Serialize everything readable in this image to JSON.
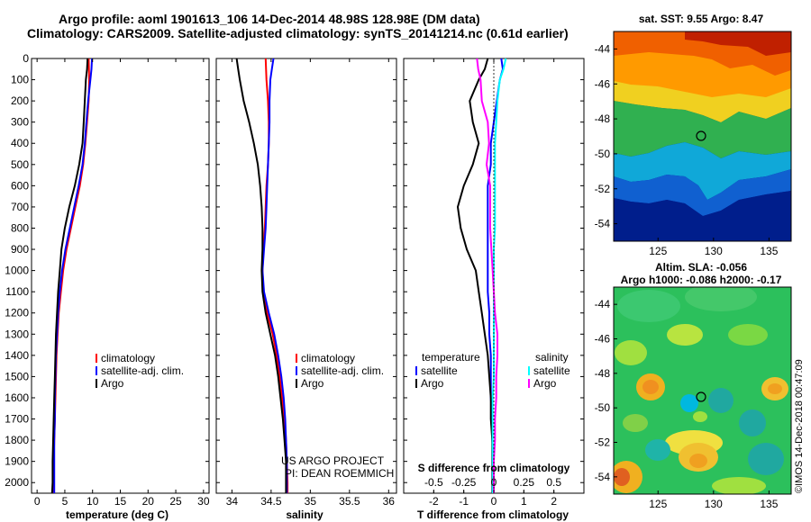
{
  "header": {
    "line1": "Argo profile: aoml 1901613_106 14-Dec-2014 48.98S 128.98E (DM data)",
    "line2": "Climatology: CARS2009. Satellite-adjusted climatology: synTS_20141214.nc (0.61d earlier)"
  },
  "credit": {
    "line1": "US ARGO PROJECT",
    "line2": "PI: DEAN ROEMMICH"
  },
  "side_stamp": "©IMOS 14-Dec-2018 00:47:09",
  "colors": {
    "red": "#ff0000",
    "blue": "#0000ff",
    "black": "#000000",
    "cyan": "#00ffff",
    "magenta": "#ff00ff"
  },
  "chart_data": [
    {
      "type": "line",
      "xlabel": "temperature (deg C)",
      "ylim": [
        2050,
        0
      ],
      "xlim": [
        -1,
        31
      ],
      "y_ticks": [
        0,
        100,
        200,
        300,
        400,
        500,
        600,
        700,
        800,
        900,
        1000,
        1100,
        1200,
        1300,
        1400,
        1500,
        1600,
        1700,
        1800,
        1900,
        2000
      ],
      "x_ticks": [
        0,
        5,
        10,
        15,
        20,
        25,
        30
      ],
      "legend": [
        "climatology",
        "satellite-adj. clim.",
        "Argo"
      ],
      "series": [
        {
          "name": "climatology",
          "color": "#ff0000",
          "points": [
            [
              9.3,
              0
            ],
            [
              9.4,
              100
            ],
            [
              9.3,
              200
            ],
            [
              9.0,
              300
            ],
            [
              8.7,
              400
            ],
            [
              8.3,
              500
            ],
            [
              7.7,
              600
            ],
            [
              6.9,
              700
            ],
            [
              6.1,
              800
            ],
            [
              5.3,
              900
            ],
            [
              4.7,
              1000
            ],
            [
              4.3,
              1100
            ],
            [
              3.9,
              1200
            ],
            [
              3.7,
              1300
            ],
            [
              3.5,
              1400
            ],
            [
              3.4,
              1500
            ],
            [
              3.3,
              1600
            ],
            [
              3.2,
              1700
            ],
            [
              3.1,
              1800
            ],
            [
              3.0,
              1900
            ],
            [
              2.9,
              2000
            ],
            [
              2.8,
              2050
            ]
          ]
        },
        {
          "name": "satellite-adj. clim.",
          "color": "#0000ff",
          "points": [
            [
              9.9,
              0
            ],
            [
              9.8,
              50
            ],
            [
              9.6,
              100
            ],
            [
              9.2,
              200
            ],
            [
              8.9,
              300
            ],
            [
              8.6,
              400
            ],
            [
              8.2,
              500
            ],
            [
              7.5,
              600
            ],
            [
              6.7,
              700
            ],
            [
              5.9,
              800
            ],
            [
              5.1,
              900
            ],
            [
              4.5,
              1000
            ],
            [
              4.1,
              1100
            ],
            [
              3.8,
              1200
            ],
            [
              3.6,
              1300
            ],
            [
              3.4,
              1400
            ],
            [
              3.3,
              1500
            ],
            [
              3.2,
              1600
            ],
            [
              3.2,
              1700
            ],
            [
              3.1,
              1800
            ],
            [
              3.1,
              1900
            ],
            [
              3.1,
              2000
            ],
            [
              3.1,
              2050
            ]
          ]
        },
        {
          "name": "Argo",
          "color": "#000000",
          "points": [
            [
              9.1,
              0
            ],
            [
              9.0,
              50
            ],
            [
              8.8,
              100
            ],
            [
              8.6,
              200
            ],
            [
              8.4,
              300
            ],
            [
              8.2,
              400
            ],
            [
              7.6,
              500
            ],
            [
              6.8,
              600
            ],
            [
              5.8,
              700
            ],
            [
              5.0,
              800
            ],
            [
              4.4,
              900
            ],
            [
              4.1,
              1000
            ],
            [
              3.8,
              1100
            ],
            [
              3.6,
              1200
            ],
            [
              3.4,
              1300
            ],
            [
              3.3,
              1400
            ],
            [
              3.2,
              1500
            ],
            [
              3.1,
              1600
            ],
            [
              3.0,
              1700
            ],
            [
              2.9,
              1800
            ],
            [
              2.8,
              1900
            ],
            [
              2.8,
              2000
            ],
            [
              2.7,
              2050
            ]
          ]
        }
      ]
    },
    {
      "type": "line",
      "xlabel": "salinity",
      "ylim": [
        2050,
        0
      ],
      "xlim": [
        33.8,
        36.1
      ],
      "x_ticks": [
        34,
        34.5,
        35,
        35.5,
        36
      ],
      "legend": [
        "climatology",
        "satellite-adj. clim.",
        "Argo"
      ],
      "series": [
        {
          "name": "climatology",
          "color": "#ff0000",
          "points": [
            [
              34.43,
              0
            ],
            [
              34.44,
              100
            ],
            [
              34.46,
              200
            ],
            [
              34.47,
              300
            ],
            [
              34.47,
              400
            ],
            [
              34.46,
              500
            ],
            [
              34.44,
              600
            ],
            [
              34.43,
              700
            ],
            [
              34.42,
              800
            ],
            [
              34.4,
              900
            ],
            [
              34.39,
              1000
            ],
            [
              34.4,
              1100
            ],
            [
              34.45,
              1200
            ],
            [
              34.52,
              1300
            ],
            [
              34.57,
              1400
            ],
            [
              34.61,
              1500
            ],
            [
              34.64,
              1600
            ],
            [
              34.67,
              1700
            ],
            [
              34.69,
              1800
            ],
            [
              34.7,
              1900
            ],
            [
              34.71,
              2000
            ],
            [
              34.71,
              2050
            ]
          ]
        },
        {
          "name": "satellite-adj. clim.",
          "color": "#0000ff",
          "points": [
            [
              34.53,
              0
            ],
            [
              34.51,
              50
            ],
            [
              34.49,
              100
            ],
            [
              34.48,
              200
            ],
            [
              34.48,
              300
            ],
            [
              34.47,
              400
            ],
            [
              34.46,
              500
            ],
            [
              34.45,
              600
            ],
            [
              34.44,
              700
            ],
            [
              34.43,
              800
            ],
            [
              34.41,
              900
            ],
            [
              34.39,
              1000
            ],
            [
              34.41,
              1100
            ],
            [
              34.47,
              1200
            ],
            [
              34.54,
              1300
            ],
            [
              34.59,
              1400
            ],
            [
              34.63,
              1500
            ],
            [
              34.66,
              1600
            ],
            [
              34.68,
              1700
            ],
            [
              34.69,
              1800
            ],
            [
              34.7,
              1900
            ],
            [
              34.7,
              2000
            ],
            [
              34.7,
              2050
            ]
          ]
        },
        {
          "name": "Argo",
          "color": "#000000",
          "points": [
            [
              34.06,
              0
            ],
            [
              34.08,
              50
            ],
            [
              34.1,
              100
            ],
            [
              34.15,
              200
            ],
            [
              34.22,
              300
            ],
            [
              34.28,
              400
            ],
            [
              34.33,
              500
            ],
            [
              34.36,
              600
            ],
            [
              34.38,
              700
            ],
            [
              34.39,
              800
            ],
            [
              34.39,
              900
            ],
            [
              34.38,
              1000
            ],
            [
              34.39,
              1100
            ],
            [
              34.43,
              1200
            ],
            [
              34.49,
              1300
            ],
            [
              34.55,
              1400
            ],
            [
              34.59,
              1500
            ],
            [
              34.62,
              1600
            ],
            [
              34.65,
              1700
            ],
            [
              34.67,
              1800
            ],
            [
              34.69,
              1900
            ],
            [
              34.69,
              2000
            ],
            [
              34.69,
              2050
            ]
          ]
        }
      ]
    },
    {
      "type": "line",
      "xlabel": "T difference from climatology",
      "x2label": "S difference from climatology",
      "ylim": [
        2050,
        0
      ],
      "xlim": [
        -3,
        3
      ],
      "x_ticks": [
        -2,
        -1,
        0,
        1,
        2
      ],
      "x2lim": [
        -0.75,
        0.75
      ],
      "x2_ticks": [
        -0.5,
        -0.25,
        0,
        0.25,
        0.5
      ],
      "x2_tick_labels": [
        "-0.5",
        "-0.25",
        "0",
        "0.25",
        "0.5"
      ],
      "legend_left_title": "temperature",
      "legend_right_title": "salinity",
      "legend": [
        "satellite",
        "Argo",
        "satellite",
        "Argo"
      ],
      "series": [
        {
          "name": "satellite",
          "quantity": "temperature",
          "color": "#0000ff",
          "points": [
            [
              0.25,
              0
            ],
            [
              0.3,
              50
            ],
            [
              0.2,
              100
            ],
            [
              0.1,
              200
            ],
            [
              0.0,
              300
            ],
            [
              -0.1,
              400
            ],
            [
              -0.1,
              500
            ],
            [
              -0.2,
              600
            ],
            [
              -0.2,
              700
            ],
            [
              -0.2,
              800
            ],
            [
              -0.2,
              900
            ],
            [
              -0.2,
              1000
            ],
            [
              -0.2,
              1100
            ],
            [
              -0.15,
              1200
            ],
            [
              -0.15,
              1300
            ],
            [
              -0.1,
              1400
            ],
            [
              -0.1,
              1500
            ],
            [
              -0.1,
              1600
            ],
            [
              -0.05,
              1700
            ],
            [
              -0.05,
              1800
            ],
            [
              0.0,
              1900
            ],
            [
              0.0,
              2000
            ],
            [
              0.0,
              2050
            ]
          ]
        },
        {
          "name": "Argo",
          "quantity": "temperature",
          "color": "#000000",
          "points": [
            [
              -0.2,
              0
            ],
            [
              -0.3,
              50
            ],
            [
              -0.5,
              100
            ],
            [
              -0.8,
              200
            ],
            [
              -0.7,
              300
            ],
            [
              -0.5,
              400
            ],
            [
              -0.7,
              500
            ],
            [
              -1.0,
              600
            ],
            [
              -1.2,
              700
            ],
            [
              -1.1,
              800
            ],
            [
              -0.9,
              900
            ],
            [
              -0.6,
              1000
            ],
            [
              -0.5,
              1100
            ],
            [
              -0.4,
              1200
            ],
            [
              -0.3,
              1300
            ],
            [
              -0.2,
              1400
            ],
            [
              -0.15,
              1500
            ],
            [
              -0.1,
              1600
            ],
            [
              -0.1,
              1700
            ],
            [
              -0.05,
              1800
            ],
            [
              -0.05,
              1900
            ],
            [
              -0.05,
              2000
            ],
            [
              -0.05,
              2050
            ]
          ]
        },
        {
          "name": "satellite",
          "quantity": "salinity",
          "color": "#00ffff",
          "points": [
            [
              0.1,
              0
            ],
            [
              0.08,
              50
            ],
            [
              0.05,
              100
            ],
            [
              0.03,
              200
            ],
            [
              0.02,
              300
            ],
            [
              0.01,
              400
            ],
            [
              0.01,
              500
            ],
            [
              0.01,
              600
            ],
            [
              0.01,
              700
            ],
            [
              0.01,
              800
            ],
            [
              0.0,
              900
            ],
            [
              0.0,
              1000
            ],
            [
              0.0,
              1100
            ],
            [
              0.0,
              1200
            ],
            [
              0.0,
              1300
            ],
            [
              0.0,
              1400
            ],
            [
              0.0,
              1500
            ],
            [
              -0.01,
              1600
            ],
            [
              -0.01,
              1700
            ],
            [
              -0.01,
              1800
            ],
            [
              -0.01,
              1900
            ],
            [
              -0.01,
              2000
            ],
            [
              -0.01,
              2050
            ]
          ]
        },
        {
          "name": "Argo",
          "quantity": "salinity",
          "color": "#ff00ff",
          "points": [
            [
              -0.14,
              0
            ],
            [
              -0.13,
              50
            ],
            [
              -0.11,
              100
            ],
            [
              -0.1,
              200
            ],
            [
              -0.05,
              300
            ],
            [
              -0.04,
              400
            ],
            [
              -0.06,
              500
            ],
            [
              -0.03,
              600
            ],
            [
              -0.03,
              700
            ],
            [
              -0.03,
              800
            ],
            [
              -0.02,
              900
            ],
            [
              -0.01,
              1000
            ],
            [
              0.0,
              1100
            ],
            [
              0.01,
              1200
            ],
            [
              0.03,
              1300
            ],
            [
              0.03,
              1400
            ],
            [
              0.02,
              1500
            ],
            [
              0.02,
              1600
            ],
            [
              0.01,
              1700
            ],
            [
              0.01,
              1800
            ],
            [
              0.0,
              1900
            ],
            [
              0.0,
              2000
            ],
            [
              0.0,
              2050
            ]
          ]
        }
      ]
    },
    {
      "type": "heatmap",
      "title": "sat. SST: 9.55 Argo: 8.47",
      "xlim": [
        121,
        137
      ],
      "ylim": [
        -55,
        -43
      ],
      "x_ticks": [
        125,
        130,
        135
      ],
      "y_ticks": [
        -44,
        -46,
        -48,
        -50,
        -52,
        -54
      ],
      "marker": [
        128.98,
        -48.98
      ]
    },
    {
      "type": "heatmap",
      "title": "Altim. SLA: -0.056",
      "subtitle": "Argo h1000: -0.086 h2000: -0.17",
      "xlim": [
        121,
        137
      ],
      "ylim": [
        -55,
        -43
      ],
      "x_ticks": [
        125,
        130,
        135
      ],
      "y_ticks": [
        -44,
        -46,
        -48,
        -50,
        -52,
        -54
      ],
      "marker": [
        128.98,
        -48.98
      ]
    }
  ]
}
